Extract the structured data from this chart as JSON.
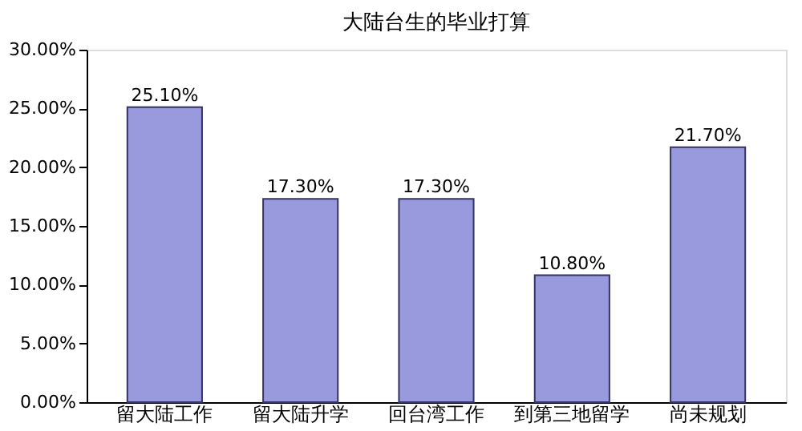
{
  "chart_data": {
    "type": "bar",
    "title": "大陆台生的毕业打算",
    "categories": [
      "留大陆工作",
      "留大陆升学",
      "回台湾工作",
      "到第三地留学",
      "尚未规划"
    ],
    "values": [
      25.1,
      17.3,
      17.3,
      10.8,
      21.7
    ],
    "value_labels": [
      "25.10%",
      "17.30%",
      "17.30%",
      "10.80%",
      "21.70%"
    ],
    "color": "#9999dd",
    "ylim": [
      0,
      30
    ],
    "yticks": [
      {
        "value": 0,
        "label": "0.00%"
      },
      {
        "value": 5,
        "label": "5.00%"
      },
      {
        "value": 10,
        "label": "10.00%"
      },
      {
        "value": 15,
        "label": "15.00%"
      },
      {
        "value": 20,
        "label": "20.00%"
      },
      {
        "value": 25,
        "label": "25.00%"
      },
      {
        "value": 30,
        "label": "30.00%"
      }
    ],
    "grid": false
  }
}
